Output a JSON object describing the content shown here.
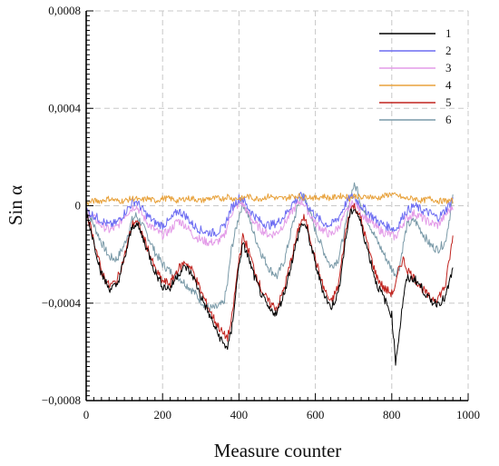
{
  "chart_data": {
    "type": "line",
    "xlabel": "Measure counter",
    "ylabel": "Sin α",
    "xlim": [
      0,
      1000
    ],
    "ylim": [
      -0.0008,
      0.0008
    ],
    "x_ticks": [
      0,
      200,
      400,
      600,
      800,
      1000
    ],
    "x_tick_labels": [
      "0",
      "200",
      "400",
      "600",
      "800",
      "1000"
    ],
    "y_ticks": [
      -0.0008,
      -0.0004,
      0,
      0.0004,
      0.0008
    ],
    "y_tick_labels": [
      "−0,0008",
      "−0,0004",
      "0",
      "0,0004",
      "0,0008"
    ],
    "grid": true,
    "legend_position": "top-right",
    "x": [
      0,
      20,
      40,
      60,
      80,
      100,
      120,
      130,
      140,
      160,
      180,
      200,
      220,
      240,
      260,
      280,
      300,
      320,
      340,
      360,
      370,
      380,
      400,
      410,
      420,
      440,
      460,
      480,
      500,
      520,
      540,
      560,
      570,
      580,
      600,
      620,
      640,
      660,
      680,
      690,
      700,
      710,
      720,
      740,
      760,
      780,
      800,
      810,
      820,
      830,
      840,
      860,
      880,
      900,
      920,
      940,
      960
    ],
    "series": [
      {
        "name": "1",
        "color": "#000000",
        "values": [
          -2e-05,
          -0.00015,
          -0.00028,
          -0.00034,
          -0.00033,
          -0.00022,
          -9e-05,
          -7e-05,
          -0.0001,
          -0.00018,
          -0.00027,
          -0.00033,
          -0.00034,
          -0.00028,
          -0.00025,
          -0.00029,
          -0.00037,
          -0.00044,
          -0.00051,
          -0.00057,
          -0.00058,
          -0.00052,
          -0.00024,
          -0.00016,
          -0.00019,
          -0.00029,
          -0.00037,
          -0.00043,
          -0.00044,
          -0.00035,
          -0.00022,
          -9e-05,
          -7e-05,
          -0.00011,
          -0.00024,
          -0.00035,
          -0.00042,
          -0.00036,
          -0.00013,
          -4e-05,
          -1e-05,
          -3e-05,
          -8e-05,
          -0.0002,
          -0.00032,
          -0.00038,
          -0.00045,
          -0.00064,
          -0.00052,
          -0.00038,
          -0.0003,
          -0.0003,
          -0.00034,
          -0.00039,
          -0.0004,
          -0.00038,
          -0.00026
        ]
      },
      {
        "name": "2",
        "color": "#6c6cf2",
        "values": [
          -2e-05,
          -4e-05,
          -6e-05,
          -8e-05,
          -7e-05,
          -3e-05,
          1e-05,
          2e-05,
          0.0,
          -4e-05,
          -7e-05,
          -8e-05,
          -6e-05,
          -2e-05,
          -4e-05,
          -8e-05,
          -0.0001,
          -0.00011,
          -0.00011,
          -9e-05,
          -5e-05,
          -1e-05,
          3e-05,
          3e-05,
          0.0,
          -4e-05,
          -7e-05,
          -8e-05,
          -7e-05,
          -4e-05,
          1e-05,
          4e-05,
          3e-05,
          0.0,
          -4e-05,
          -7e-05,
          -8e-05,
          -5e-05,
          1e-05,
          3e-05,
          4e-05,
          2e-05,
          0.0,
          -3e-05,
          -6e-05,
          -8e-05,
          -9e-05,
          -0.0001,
          -7e-05,
          -4e-05,
          -2e-05,
          0.0,
          -2e-05,
          -3e-05,
          -5e-05,
          -2e-05,
          3e-05
        ]
      },
      {
        "name": "3",
        "color": "#e39be8",
        "values": [
          -2e-05,
          -5e-05,
          -8e-05,
          -0.0001,
          -9e-05,
          -4e-05,
          -1e-05,
          0.0,
          -2e-05,
          -7e-05,
          -0.0001,
          -0.00012,
          -0.0001,
          -6e-05,
          -8e-05,
          -0.00012,
          -0.00014,
          -0.00015,
          -0.00015,
          -0.00013,
          -8e-05,
          -3e-05,
          1e-05,
          1e-05,
          -2e-05,
          -7e-05,
          -0.0001,
          -0.00012,
          -0.00011,
          -7e-05,
          -2e-05,
          2e-05,
          1e-05,
          -2e-05,
          -7e-05,
          -0.0001,
          -0.00012,
          -9e-05,
          -3e-05,
          0.0,
          1e-05,
          0.0,
          -3e-05,
          -6e-05,
          -9e-05,
          -0.00011,
          -0.00012,
          -0.00013,
          -0.0001,
          -7e-05,
          -5e-05,
          -3e-05,
          -5e-05,
          -7e-05,
          -8e-05,
          -4e-05,
          0.0
        ]
      },
      {
        "name": "4",
        "color": "#e8a23c",
        "values": [
          1e-05,
          2e-05,
          2e-05,
          3e-05,
          2e-05,
          2e-05,
          3e-05,
          3e-05,
          2e-05,
          3e-05,
          2e-05,
          3e-05,
          3e-05,
          2e-05,
          3e-05,
          3e-05,
          2e-05,
          3e-05,
          3e-05,
          3e-05,
          4e-05,
          3e-05,
          3e-05,
          3e-05,
          4e-05,
          3e-05,
          3e-05,
          4e-05,
          3e-05,
          3e-05,
          4e-05,
          4e-05,
          3e-05,
          4e-05,
          3e-05,
          4e-05,
          3e-05,
          4e-05,
          4e-05,
          3e-05,
          4e-05,
          4e-05,
          3e-05,
          4e-05,
          3e-05,
          4e-05,
          5e-05,
          4e-05,
          4e-05,
          3e-05,
          3e-05,
          3e-05,
          2e-05,
          3e-05,
          2e-05,
          2e-05,
          2e-05
        ]
      },
      {
        "name": "5",
        "color": "#c0231e",
        "values": [
          -2e-05,
          -0.00014,
          -0.00027,
          -0.00033,
          -0.00031,
          -0.00021,
          -8e-05,
          -6e-05,
          -9e-05,
          -0.00017,
          -0.00026,
          -0.00031,
          -0.00032,
          -0.00026,
          -0.00023,
          -0.00027,
          -0.00035,
          -0.00042,
          -0.00048,
          -0.00053,
          -0.00054,
          -0.00048,
          -0.00022,
          -0.00013,
          -0.00016,
          -0.00026,
          -0.00035,
          -0.0004,
          -0.00042,
          -0.00033,
          -0.0002,
          -7e-05,
          -5e-05,
          -9e-05,
          -0.00022,
          -0.00033,
          -0.0004,
          -0.00033,
          -0.0001,
          -2e-05,
          0.0,
          -2e-05,
          -6e-05,
          -0.00018,
          -0.00029,
          -0.00034,
          -0.00036,
          -0.00033,
          -0.00025,
          -0.00022,
          -0.00026,
          -0.0003,
          -0.00034,
          -0.00038,
          -0.00038,
          -0.00033,
          -0.00013
        ]
      },
      {
        "name": "6",
        "color": "#7a9aa8",
        "values": [
          -1e-05,
          -8e-05,
          -0.00015,
          -0.00021,
          -0.00022,
          -0.00016,
          -6e-05,
          -4e-05,
          -6e-05,
          -0.00012,
          -0.00019,
          -0.00024,
          -0.00027,
          -0.00029,
          -0.00032,
          -0.00035,
          -0.00039,
          -0.00042,
          -0.00042,
          -0.0004,
          -0.00032,
          -0.00018,
          -4e-05,
          1e-05,
          -2e-05,
          -0.00012,
          -0.0002,
          -0.00026,
          -0.00029,
          -0.00022,
          -8e-05,
          3e-05,
          4e-05,
          0.0,
          -0.0001,
          -0.00018,
          -0.00025,
          -0.00022,
          -8e-05,
          3e-05,
          8e-05,
          7e-05,
          0.0,
          -7e-05,
          -0.00014,
          -0.0002,
          -0.00026,
          -0.00028,
          -0.00025,
          -0.00016,
          -8e-05,
          -6e-05,
          -0.00011,
          -0.00016,
          -0.00018,
          -0.00015,
          3e-05
        ]
      }
    ]
  }
}
